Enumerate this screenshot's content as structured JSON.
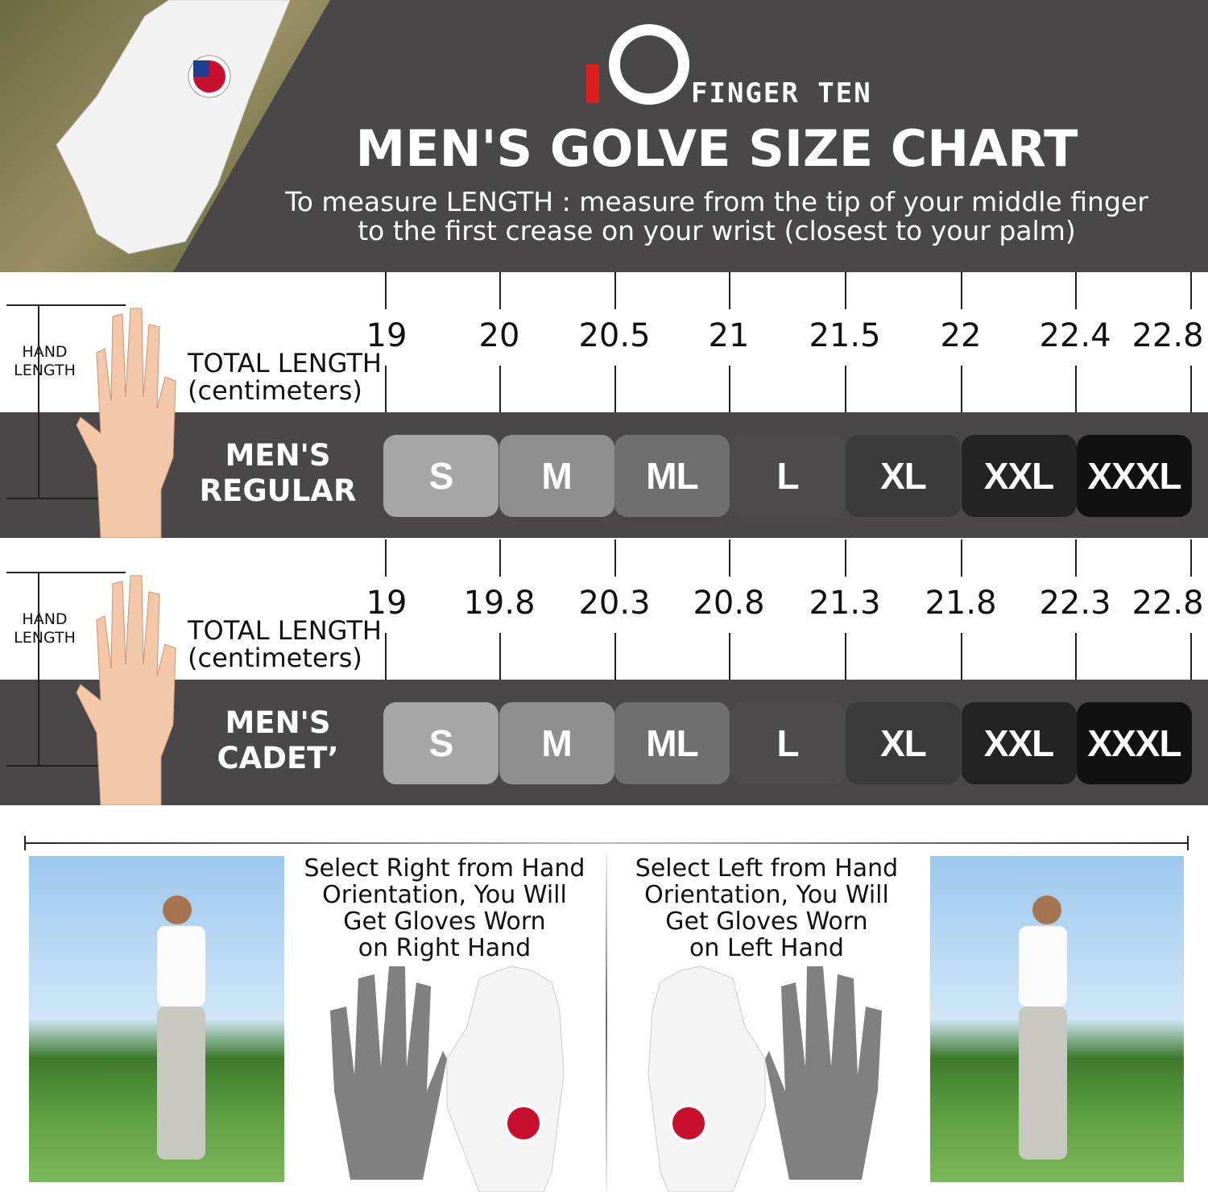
{
  "brand": {
    "logo_text": "FINGER TEN",
    "accent": "#e01b1b"
  },
  "title": "MEN'S GOLVE SIZE CHART",
  "subtitle_lines": [
    "To measure LENGTH : measure from the tip of your middle finger",
    "to the first crease on your wrist (closest to your palm)"
  ],
  "hand_length_label": [
    "HAND",
    "LENGTH"
  ],
  "total_length_label": [
    "TOTAL LENGTH",
    "(centimeters)"
  ],
  "charts": [
    {
      "category": [
        "MEN'S",
        "REGULAR"
      ],
      "lengths_cm": [
        "19",
        "20",
        "20.5",
        "21",
        "21.5",
        "22",
        "22.4",
        "22.8"
      ]
    },
    {
      "category": [
        "MEN'S",
        "CADET’"
      ],
      "lengths_cm": [
        "19",
        "19.8",
        "20.3",
        "20.8",
        "21.3",
        "21.8",
        "22.3",
        "22.8"
      ]
    }
  ],
  "sizes": [
    {
      "label": "S",
      "color": "#a6a6a6"
    },
    {
      "label": "M",
      "color": "#8f8f8f"
    },
    {
      "label": "ML",
      "color": "#6f6f6f"
    },
    {
      "label": "L",
      "color": "#4d4b4c"
    },
    {
      "label": "XL",
      "color": "#3b3b3b"
    },
    {
      "label": "XXL",
      "color": "#232323"
    },
    {
      "label": "XXXL",
      "color": "#111111"
    }
  ],
  "orientation": {
    "right": [
      "Select Right from Hand",
      "Orientation, You Will",
      "Get Gloves Worn",
      "on Right Hand"
    ],
    "left": [
      "Select Left from Hand",
      "Orientation, You Will",
      "Get Gloves Worn",
      "on Left Hand"
    ]
  }
}
